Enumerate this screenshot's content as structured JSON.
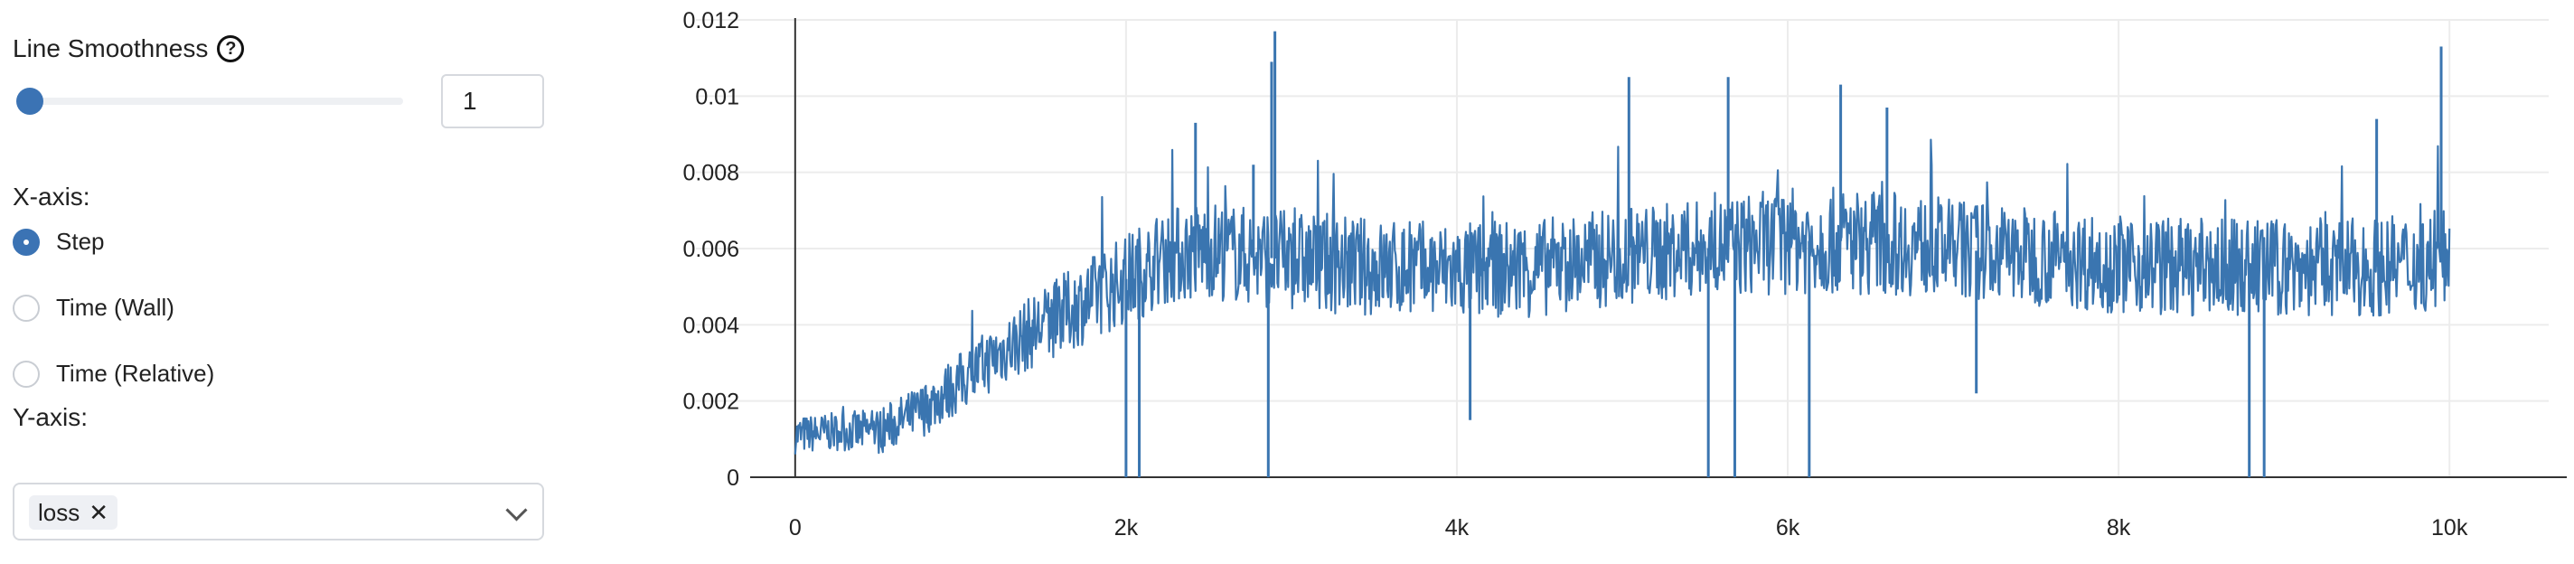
{
  "controls": {
    "smoothing_label": "Line Smoothness",
    "help_icon": "?",
    "smoothing_value": "1",
    "smoothing_fraction": 0.0,
    "xaxis_label": "X-axis:",
    "xaxis_options": [
      "Step",
      "Time (Wall)",
      "Time (Relative)"
    ],
    "xaxis_selected": "Step",
    "yaxis_label": "Y-axis:",
    "yaxis_chip": "loss",
    "yaxis_chip_close": "✕"
  },
  "colors": {
    "accent": "#3b73b4",
    "line": "#3a75b0"
  },
  "chart_data": {
    "type": "line",
    "title": "",
    "xlabel": "",
    "ylabel": "",
    "xlim": [
      -600,
      10600
    ],
    "ylim": [
      0,
      0.012
    ],
    "x_ticks": [
      0,
      2000,
      4000,
      6000,
      8000,
      10000
    ],
    "x_tick_labels": [
      "0",
      "2k",
      "4k",
      "6k",
      "8k",
      "10k"
    ],
    "y_ticks": [
      0,
      0.002,
      0.004,
      0.006,
      0.008,
      0.01,
      0.012
    ],
    "y_tick_labels": [
      "0",
      "0.002",
      "0.004",
      "0.006",
      "0.008",
      "0.01",
      "0.012"
    ],
    "grid": true,
    "legend": "none",
    "series": [
      {
        "x": [
          0,
          250,
          500,
          750,
          1000,
          1250,
          1500,
          1750,
          2000,
          2250,
          2500,
          2750,
          3000,
          3500,
          4000,
          4500,
          5000,
          5500,
          6000,
          6500,
          7000,
          7500,
          8000,
          8500,
          9000,
          9500,
          10000
        ],
        "y": [
          0.0011,
          0.0012,
          0.0012,
          0.0017,
          0.0025,
          0.0033,
          0.004,
          0.0046,
          0.0052,
          0.0058,
          0.006,
          0.0058,
          0.0057,
          0.0055,
          0.0054,
          0.0055,
          0.0058,
          0.006,
          0.0062,
          0.0062,
          0.006,
          0.0058,
          0.0056,
          0.0055,
          0.0055,
          0.0055,
          0.0057
        ],
        "band": [
          0.0005,
          0.0005,
          0.0006,
          0.0007,
          0.0008,
          0.0009,
          0.001,
          0.0011,
          0.0012,
          0.0013,
          0.0013,
          0.0013,
          0.0013,
          0.0013,
          0.0013,
          0.0013,
          0.0013,
          0.0013,
          0.0014,
          0.0014,
          0.0013,
          0.0013,
          0.0013,
          0.0013,
          0.0013,
          0.0013,
          0.0013
        ],
        "spikes": [
          {
            "x": 2900,
            "y": 0.0117
          },
          {
            "x": 2880,
            "y": 0.0109
          },
          {
            "x": 5040,
            "y": 0.0105
          },
          {
            "x": 5640,
            "y": 0.0105
          },
          {
            "x": 9950,
            "y": 0.0113
          },
          {
            "x": 6320,
            "y": 0.0103
          },
          {
            "x": 2420,
            "y": 0.0093
          },
          {
            "x": 2770,
            "y": 0.0082
          },
          {
            "x": 6600,
            "y": 0.0097
          },
          {
            "x": 9560,
            "y": 0.0094
          }
        ],
        "dips": [
          {
            "x": 2000,
            "y": 0.0
          },
          {
            "x": 2080,
            "y": 0.0
          },
          {
            "x": 2860,
            "y": 0.0
          },
          {
            "x": 5520,
            "y": 0.0
          },
          {
            "x": 5680,
            "y": 0.0
          },
          {
            "x": 6130,
            "y": 0.0
          },
          {
            "x": 8790,
            "y": 0.0
          },
          {
            "x": 8880,
            "y": 0.0
          },
          {
            "x": 4080,
            "y": 0.0015
          },
          {
            "x": 7140,
            "y": 0.0022
          }
        ]
      }
    ]
  }
}
